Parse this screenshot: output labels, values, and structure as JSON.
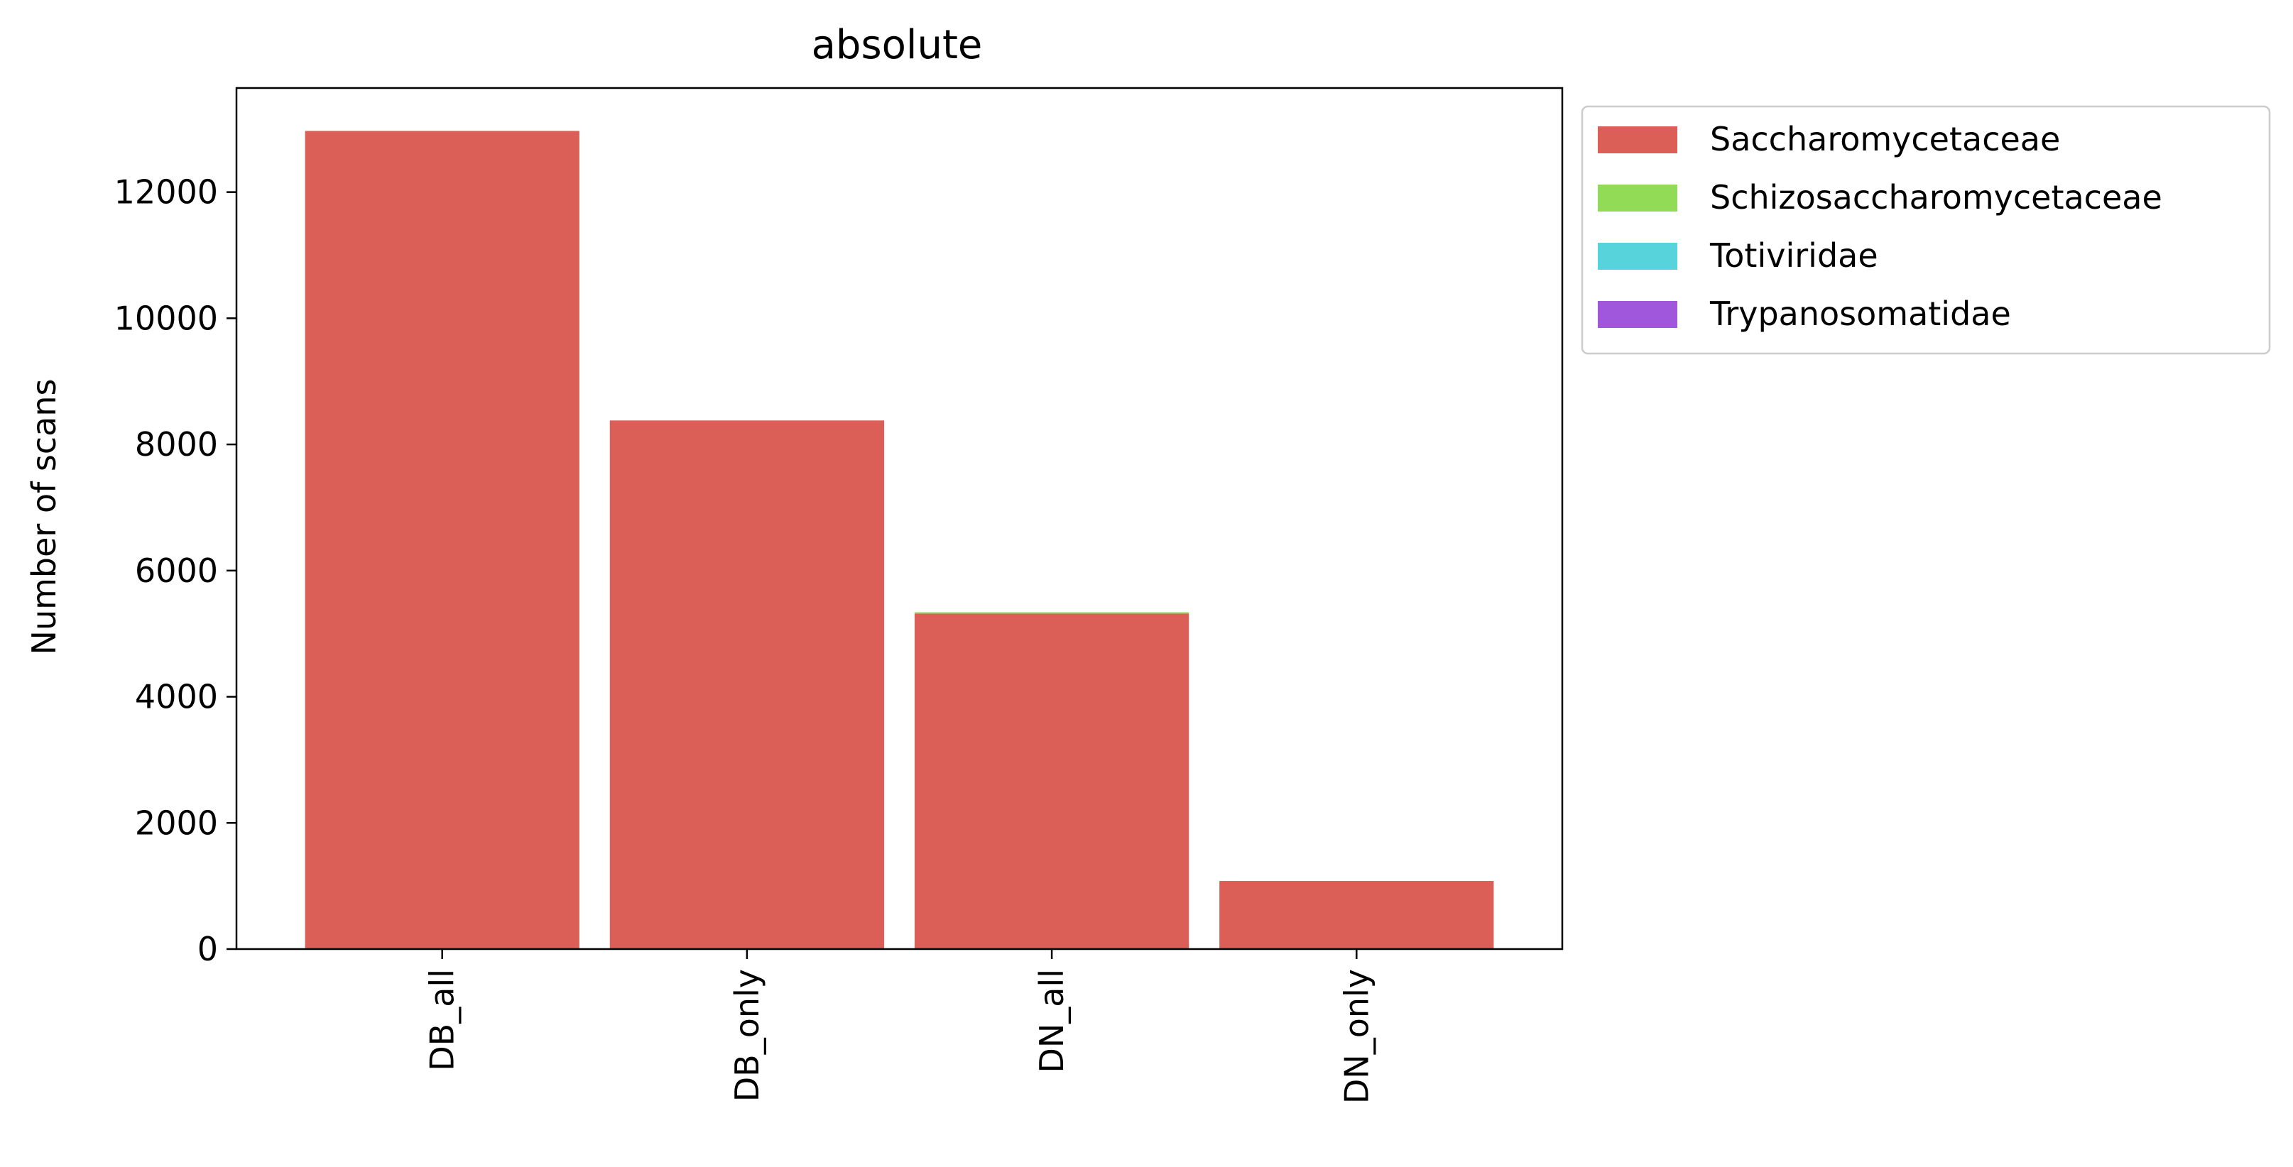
{
  "chart_data": {
    "type": "bar",
    "stacked": true,
    "title": "absolute",
    "xlabel": "",
    "ylabel": "Number of scans",
    "categories": [
      "DB_all",
      "DB_only",
      "DN_all",
      "DN_only"
    ],
    "ylim": [
      0,
      13650
    ],
    "yticks": [
      0,
      2000,
      4000,
      6000,
      8000,
      10000,
      12000
    ],
    "legend_position": "outside-top-right",
    "grid": false,
    "series": [
      {
        "name": "Saccharomycetaceae",
        "color": "#db5f57",
        "values": [
          12970,
          8380,
          5320,
          1080
        ]
      },
      {
        "name": "Schizosaccharomycetaceae",
        "color": "#91db57",
        "values": [
          0,
          0,
          20,
          0
        ]
      },
      {
        "name": "Totiviridae",
        "color": "#57d3db",
        "values": [
          0,
          0,
          0,
          0
        ]
      },
      {
        "name": "Trypanosomatidae",
        "color": "#a157db",
        "values": [
          0,
          0,
          0,
          0
        ]
      }
    ]
  }
}
